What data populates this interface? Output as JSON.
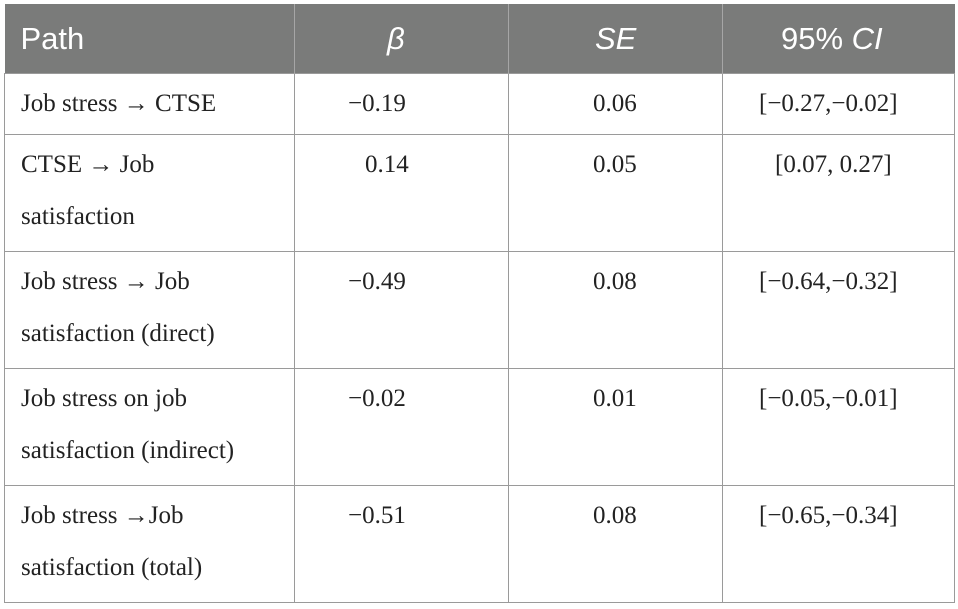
{
  "table": {
    "headers": {
      "path": "Path",
      "beta": "β",
      "se": "SE",
      "ci_prefix": "95% ",
      "ci_italic": "CI"
    },
    "rows": [
      {
        "path": "Job stress → CTSE",
        "beta": "−0.19",
        "se": "0.06",
        "ci": "[−0.27,−0.02]"
      },
      {
        "path": "CTSE → Job\nsatisfaction",
        "beta": "0.14",
        "se": "0.05",
        "ci": "[0.07, 0.27]"
      },
      {
        "path": "Job stress → Job\nsatisfaction (direct)",
        "beta": "−0.49",
        "se": "0.08",
        "ci": "[−0.64,−0.32]"
      },
      {
        "path": "Job stress on job\nsatisfaction (indirect)",
        "beta": "−0.02",
        "se": "0.01",
        "ci": "[−0.05,−0.01]"
      },
      {
        "path": "Job stress →Job\nsatisfaction (total)",
        "beta": "−0.51",
        "se": "0.08",
        "ci": "[−0.65,−0.34]"
      }
    ]
  },
  "colors": {
    "header_bg": "#7a7b7a",
    "header_text": "#ffffff",
    "border": "#9a9a9a"
  }
}
